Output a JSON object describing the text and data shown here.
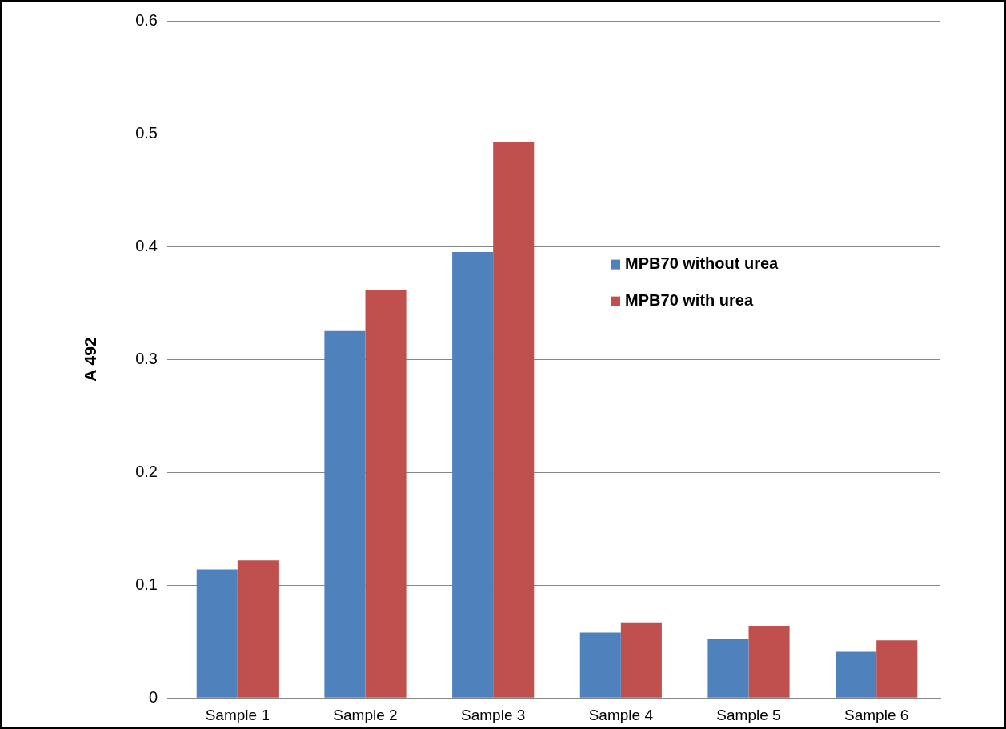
{
  "chart_data": {
    "type": "bar",
    "ylabel": "A 492",
    "categories": [
      "Sample 1",
      "Sample 2",
      "Sample 3",
      "Sample 4",
      "Sample 5",
      "Sample 6"
    ],
    "series": [
      {
        "name": "MPB70 without urea",
        "color": "#4f81bd",
        "values": [
          0.114,
          0.325,
          0.395,
          0.058,
          0.052,
          0.041
        ]
      },
      {
        "name": "MPB70 with urea",
        "color": "#c0504d",
        "values": [
          0.122,
          0.361,
          0.493,
          0.067,
          0.064,
          0.051
        ]
      }
    ],
    "ylim": [
      0,
      0.6
    ],
    "yticks": [
      0,
      0.1,
      0.2,
      0.3,
      0.4,
      0.5,
      0.6
    ],
    "grid": "y",
    "legend": "right"
  }
}
